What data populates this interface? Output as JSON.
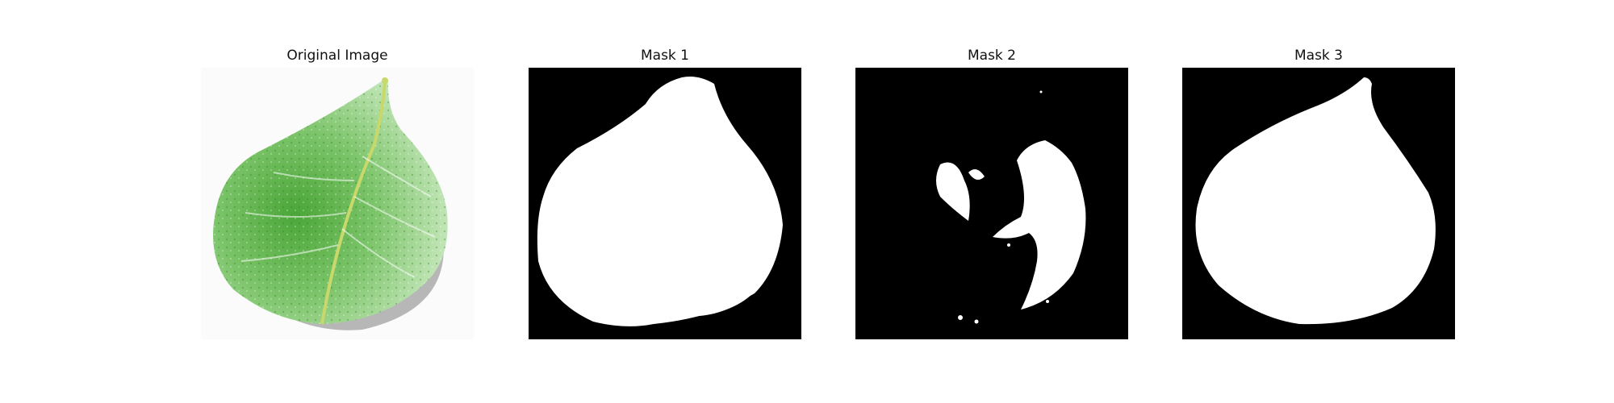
{
  "figure": {
    "panels": [
      {
        "title": "Original Image",
        "kind": "photo",
        "subject": "green-leaf"
      },
      {
        "title": "Mask 1",
        "kind": "binary-mask"
      },
      {
        "title": "Mask 2",
        "kind": "binary-mask"
      },
      {
        "title": "Mask 3",
        "kind": "binary-mask"
      }
    ],
    "colors": {
      "background": "#ffffff",
      "mask_fg": "#ffffff",
      "mask_bg": "#000000",
      "leaf_dark": "#3f9a2e",
      "leaf_light": "#bfe6b0"
    }
  }
}
